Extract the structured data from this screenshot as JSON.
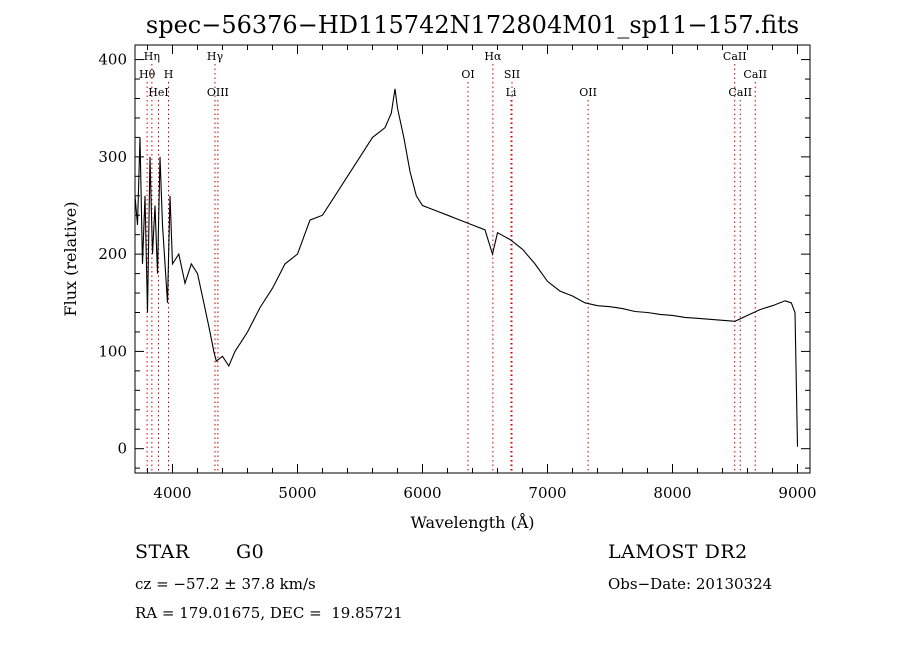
{
  "chart_data": {
    "type": "line",
    "title": "spec−56376−HD115742N172804M01_sp11−157.fits",
    "xlabel": "Wavelength (Å)",
    "ylabel": "Flux (relative)",
    "xlim": [
      3700,
      9100
    ],
    "ylim": [
      -25,
      415
    ],
    "xticks": [
      4000,
      5000,
      6000,
      7000,
      8000,
      9000
    ],
    "yticks": [
      0,
      100,
      200,
      300,
      400
    ],
    "grid": false,
    "series": [
      {
        "x": [
          3700,
          3720,
          3740,
          3760,
          3780,
          3800,
          3820,
          3840,
          3860,
          3880,
          3900,
          3920,
          3940,
          3960,
          3980,
          4000,
          4050,
          4100,
          4150,
          4200,
          4250,
          4300,
          4330,
          4350,
          4400,
          4450,
          4500,
          4550,
          4600,
          4700,
          4800,
          4900,
          5000,
          5100,
          5200,
          5300,
          5400,
          5500,
          5600,
          5700,
          5750,
          5780,
          5800,
          5850,
          5900,
          5950,
          6000,
          6100,
          6200,
          6300,
          6400,
          6500,
          6560,
          6600,
          6700,
          6800,
          6900,
          7000,
          7100,
          7200,
          7300,
          7400,
          7500,
          7600,
          7700,
          7800,
          7900,
          8000,
          8100,
          8200,
          8300,
          8400,
          8500,
          8600,
          8700,
          8800,
          8900,
          8950,
          8980,
          9000
        ],
        "values": [
          260,
          230,
          320,
          190,
          260,
          140,
          300,
          200,
          250,
          180,
          300,
          230,
          190,
          150,
          260,
          190,
          200,
          170,
          190,
          180,
          150,
          120,
          100,
          90,
          95,
          85,
          100,
          110,
          120,
          145,
          165,
          190,
          200,
          235,
          240,
          260,
          280,
          300,
          320,
          330,
          345,
          370,
          350,
          320,
          285,
          260,
          250,
          245,
          240,
          235,
          230,
          225,
          200,
          222,
          215,
          205,
          190,
          172,
          162,
          157,
          150,
          147,
          146,
          144,
          141,
          140,
          138,
          137,
          135,
          134,
          133,
          132,
          131,
          137,
          143,
          147,
          152,
          150,
          140,
          2
        ]
      }
    ],
    "line_labels": [
      {
        "label": "Hη",
        "wavelength": 3835,
        "row": 0
      },
      {
        "label": "Hθ",
        "wavelength": 3797,
        "row": 1
      },
      {
        "label": "HeI",
        "wavelength": 3888,
        "row": 2
      },
      {
        "label": "H",
        "wavelength": 3968,
        "row": 1
      },
      {
        "label": "Hγ",
        "wavelength": 4340,
        "row": 0
      },
      {
        "label": "OIII",
        "wavelength": 4363,
        "row": 2
      },
      {
        "label": "OI",
        "wavelength": 6364,
        "row": 1
      },
      {
        "label": "Hα",
        "wavelength": 6563,
        "row": 0
      },
      {
        "label": "SII",
        "wavelength": 6716,
        "row": 1
      },
      {
        "label": "Li",
        "wavelength": 6708,
        "row": 2
      },
      {
        "label": "OII",
        "wavelength": 7325,
        "row": 2
      },
      {
        "label": "CaII",
        "wavelength": 8498,
        "row": 0
      },
      {
        "label": "CaII",
        "wavelength": 8662,
        "row": 1
      },
      {
        "label": "CaII",
        "wavelength": 8542,
        "row": 2
      }
    ],
    "line_marker_color": "#cc0000"
  },
  "info": {
    "object_class": "STAR",
    "subclass": "G0",
    "survey": "LAMOST DR2",
    "redshift": "cz = −57.2 ± 37.8 km/s",
    "obs_date": "Obs−Date: 20130324",
    "coords": "RA = 179.01675, DEC =  19.85721"
  }
}
